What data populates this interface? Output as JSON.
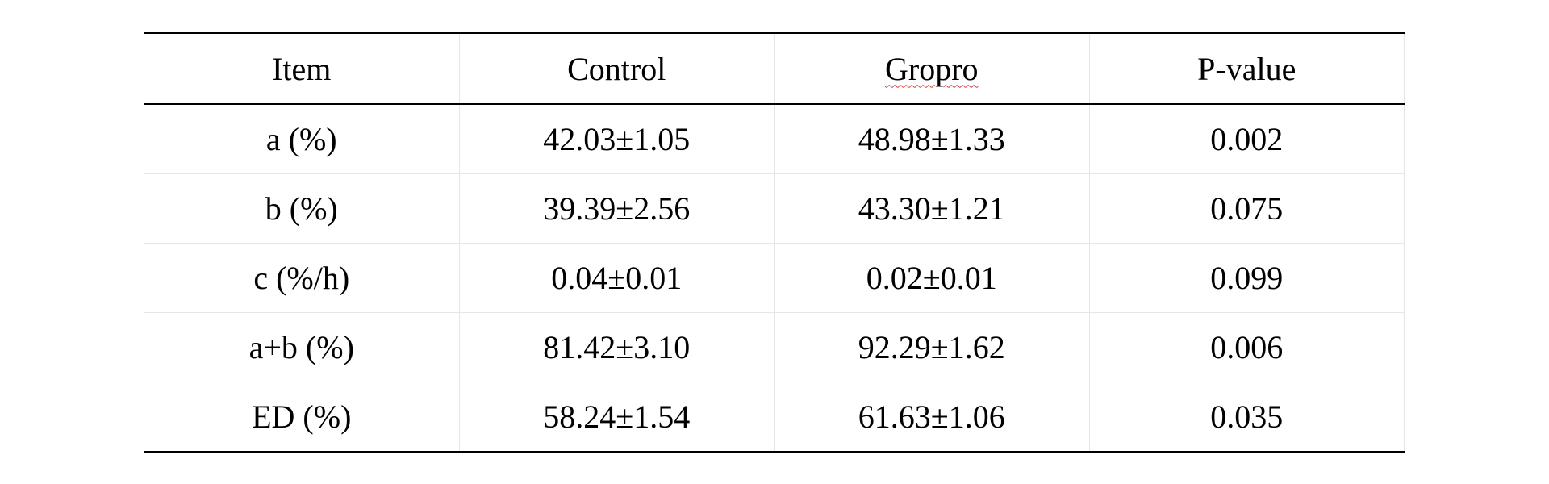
{
  "table": {
    "header": [
      "Item",
      "Control",
      "Gropro",
      "P-value"
    ],
    "rows": [
      [
        "a (%)",
        "42.03±1.05",
        "48.98±1.33",
        "0.002"
      ],
      [
        "b (%)",
        "39.39±2.56",
        "43.30±1.21",
        "0.075"
      ],
      [
        "c (%/h)",
        "0.04±0.01",
        "0.02±0.01",
        "0.099"
      ],
      [
        "a+b (%)",
        "81.42±3.10",
        "92.29±1.62",
        "0.006"
      ],
      [
        "ED (%)",
        "58.24±1.54",
        "61.63±1.06",
        "0.035"
      ]
    ]
  }
}
